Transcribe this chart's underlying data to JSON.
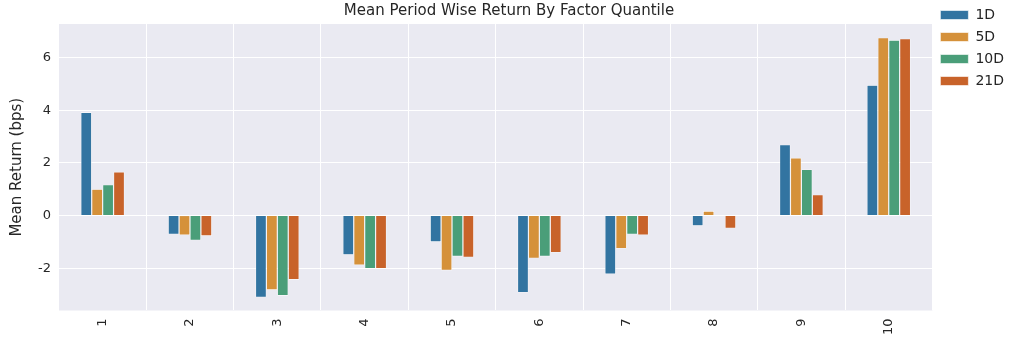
{
  "chart_data": {
    "type": "bar",
    "title": "Mean Period Wise Return By Factor Quantile",
    "ylabel": "Mean Return (bps)",
    "categories": [
      "1",
      "2",
      "3",
      "4",
      "5",
      "6",
      "7",
      "8",
      "9",
      "10"
    ],
    "series": [
      {
        "name": "1D",
        "color": "#3274a1",
        "values": [
          3.92,
          -0.71,
          -3.1,
          -1.49,
          -1.0,
          -2.92,
          -2.22,
          -0.39,
          2.69,
          4.95
        ]
      },
      {
        "name": "5D",
        "color": "#d5913a",
        "values": [
          1.0,
          -0.74,
          -2.82,
          -1.88,
          -2.08,
          -1.62,
          -1.25,
          0.17,
          2.19,
          6.75
        ]
      },
      {
        "name": "10D",
        "color": "#4a9e79",
        "values": [
          1.17,
          -0.94,
          -3.04,
          -2.01,
          -1.55,
          -1.55,
          -0.71,
          null,
          1.75,
          6.66
        ]
      },
      {
        "name": "21D",
        "color": "#c8632a",
        "values": [
          1.66,
          -0.77,
          -2.43,
          -2.01,
          -1.58,
          -1.4,
          -0.74,
          -0.48,
          0.79,
          6.71
        ]
      }
    ],
    "ylim": [
      -3.6,
      7.27
    ],
    "yticks": [
      -2,
      0,
      2,
      4,
      6
    ],
    "grid": true,
    "legend": "top right"
  }
}
